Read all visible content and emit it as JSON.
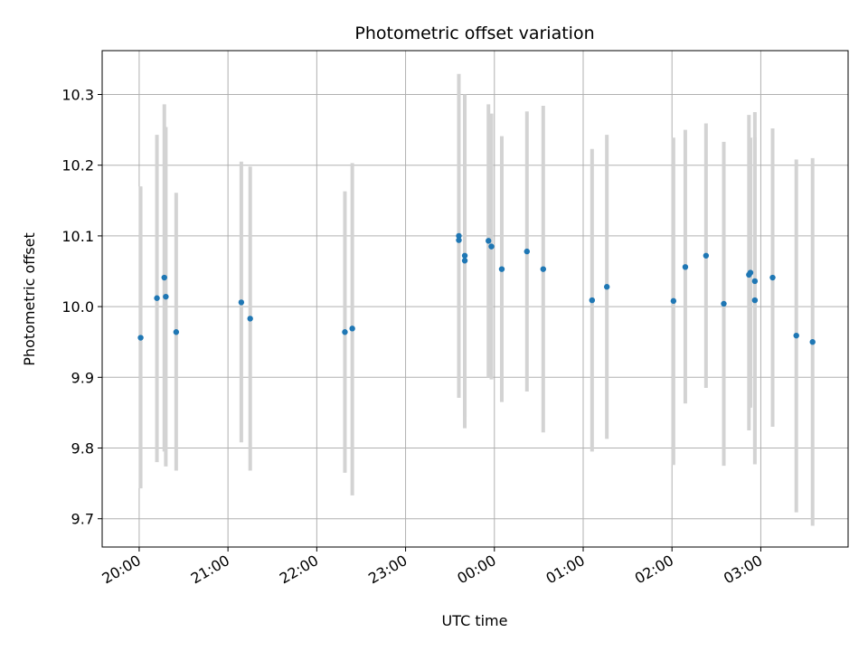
{
  "chart_data": {
    "type": "scatter",
    "title": "Photometric offset variation",
    "xlabel": "UTC time",
    "ylabel": "Photometric offset",
    "x_axis_kind": "time",
    "x_ticks": [
      "20:00",
      "21:00",
      "22:00",
      "23:00",
      "00:00",
      "01:00",
      "02:00",
      "03:00"
    ],
    "xlim": [
      "2024-01-01T19:35",
      "2024-01-02T03:59"
    ],
    "ylim": [
      9.66,
      10.362
    ],
    "y_ticks": [
      9.7,
      9.8,
      9.9,
      10.0,
      10.1,
      10.2,
      10.3
    ],
    "grid": true,
    "colors": {
      "points": "#1f77b4",
      "errorbars": "#d3d3d3",
      "grid": "#b0b0b0"
    },
    "series": [
      {
        "points": [
          {
            "x": "2024-01-01T20:01",
            "y": 9.956,
            "ylow": 9.743,
            "yhigh": 10.17
          },
          {
            "x": "2024-01-01T20:12",
            "y": 10.012,
            "ylow": 9.78,
            "yhigh": 10.243
          },
          {
            "x": "2024-01-01T20:17",
            "y": 10.041,
            "ylow": 9.795,
            "yhigh": 10.286
          },
          {
            "x": "2024-01-01T20:18",
            "y": 10.014,
            "ylow": 9.774,
            "yhigh": 10.254
          },
          {
            "x": "2024-01-01T20:25",
            "y": 9.964,
            "ylow": 9.768,
            "yhigh": 10.161
          },
          {
            "x": "2024-01-01T21:09",
            "y": 10.006,
            "ylow": 9.808,
            "yhigh": 10.205
          },
          {
            "x": "2024-01-01T21:15",
            "y": 9.983,
            "ylow": 9.768,
            "yhigh": 10.198
          },
          {
            "x": "2024-01-01T22:19",
            "y": 9.964,
            "ylow": 9.765,
            "yhigh": 10.163
          },
          {
            "x": "2024-01-01T22:24",
            "y": 9.969,
            "ylow": 9.733,
            "yhigh": 10.203
          },
          {
            "x": "2024-01-01T23:36",
            "y": 10.1,
            "ylow": 9.871,
            "yhigh": 10.329
          },
          {
            "x": "2024-01-01T23:36",
            "y": 10.094,
            "ylow": 9.885,
            "yhigh": 10.302
          },
          {
            "x": "2024-01-01T23:40",
            "y": 10.072,
            "ylow": 9.845,
            "yhigh": 10.3
          },
          {
            "x": "2024-01-01T23:40",
            "y": 10.065,
            "ylow": 9.828,
            "yhigh": 10.3
          },
          {
            "x": "2024-01-01T23:56",
            "y": 10.093,
            "ylow": 9.9,
            "yhigh": 10.286
          },
          {
            "x": "2024-01-01T23:58",
            "y": 10.085,
            "ylow": 9.897,
            "yhigh": 10.273
          },
          {
            "x": "2024-01-02T00:05",
            "y": 10.053,
            "ylow": 9.865,
            "yhigh": 10.241
          },
          {
            "x": "2024-01-02T00:22",
            "y": 10.078,
            "ylow": 9.88,
            "yhigh": 10.276
          },
          {
            "x": "2024-01-02T00:33",
            "y": 10.053,
            "ylow": 9.822,
            "yhigh": 10.284
          },
          {
            "x": "2024-01-02T01:06",
            "y": 10.009,
            "ylow": 9.795,
            "yhigh": 10.223
          },
          {
            "x": "2024-01-02T01:16",
            "y": 10.028,
            "ylow": 9.813,
            "yhigh": 10.243
          },
          {
            "x": "2024-01-02T02:01",
            "y": 10.008,
            "ylow": 9.776,
            "yhigh": 10.239
          },
          {
            "x": "2024-01-02T02:09",
            "y": 10.056,
            "ylow": 9.863,
            "yhigh": 10.25
          },
          {
            "x": "2024-01-02T02:23",
            "y": 10.072,
            "ylow": 9.885,
            "yhigh": 10.259
          },
          {
            "x": "2024-01-02T02:35",
            "y": 10.004,
            "ylow": 9.775,
            "yhigh": 10.233
          },
          {
            "x": "2024-01-02T02:52",
            "y": 10.045,
            "ylow": 9.825,
            "yhigh": 10.271
          },
          {
            "x": "2024-01-02T02:53",
            "y": 10.048,
            "ylow": 9.857,
            "yhigh": 10.239
          },
          {
            "x": "2024-01-02T02:56",
            "y": 10.009,
            "ylow": 9.777,
            "yhigh": 10.24
          },
          {
            "x": "2024-01-02T02:56",
            "y": 10.036,
            "ylow": 9.797,
            "yhigh": 10.275
          },
          {
            "x": "2024-01-02T03:08",
            "y": 10.041,
            "ylow": 9.83,
            "yhigh": 10.252
          },
          {
            "x": "2024-01-02T03:24",
            "y": 9.959,
            "ylow": 9.709,
            "yhigh": 10.208
          },
          {
            "x": "2024-01-02T03:35",
            "y": 9.95,
            "ylow": 9.69,
            "yhigh": 10.21
          }
        ]
      }
    ]
  }
}
